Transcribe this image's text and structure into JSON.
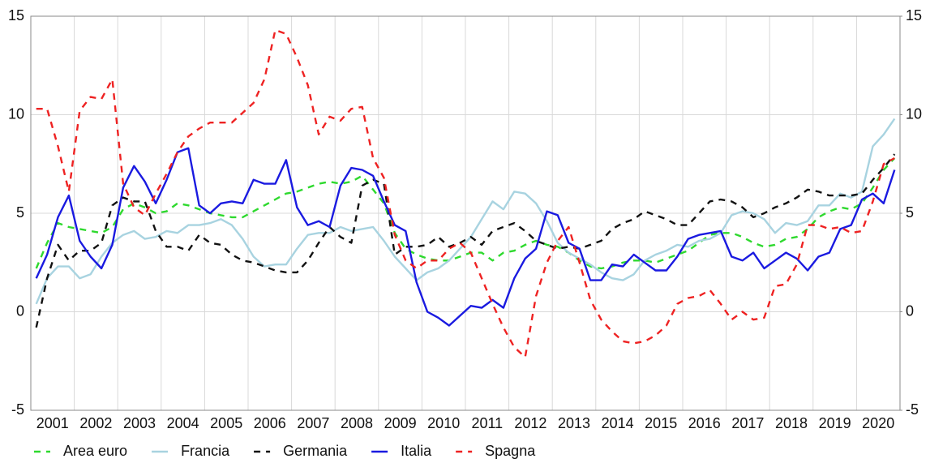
{
  "chart_data": {
    "type": "line",
    "x": [
      2001.125,
      2001.375,
      2001.625,
      2001.875,
      2002.125,
      2002.375,
      2002.625,
      2002.875,
      2003.125,
      2003.375,
      2003.625,
      2003.875,
      2004.125,
      2004.375,
      2004.625,
      2004.875,
      2005.125,
      2005.375,
      2005.625,
      2005.875,
      2006.125,
      2006.375,
      2006.625,
      2006.875,
      2007.125,
      2007.375,
      2007.625,
      2007.875,
      2008.125,
      2008.375,
      2008.625,
      2008.875,
      2009.125,
      2009.375,
      2009.625,
      2009.875,
      2010.125,
      2010.375,
      2010.625,
      2010.875,
      2011.125,
      2011.375,
      2011.625,
      2011.875,
      2012.125,
      2012.375,
      2012.625,
      2012.875,
      2013.125,
      2013.375,
      2013.625,
      2013.875,
      2014.125,
      2014.375,
      2014.625,
      2014.875,
      2015.125,
      2015.375,
      2015.625,
      2015.875,
      2016.125,
      2016.375,
      2016.625,
      2016.875,
      2017.125,
      2017.375,
      2017.625,
      2017.875,
      2018.125,
      2018.375,
      2018.625,
      2018.875,
      2019.125,
      2019.375,
      2019.625,
      2019.875,
      2020.125,
      2020.375,
      2020.625,
      2020.875
    ],
    "xlim": [
      2001,
      2021
    ],
    "xticks": [
      {
        "value": 2001.5,
        "label": "2001"
      },
      {
        "value": 2002.5,
        "label": "2002"
      },
      {
        "value": 2003.5,
        "label": "2003"
      },
      {
        "value": 2004.5,
        "label": "2004"
      },
      {
        "value": 2005.5,
        "label": "2005"
      },
      {
        "value": 2006.5,
        "label": "2006"
      },
      {
        "value": 2007.5,
        "label": "2007"
      },
      {
        "value": 2008.5,
        "label": "2008"
      },
      {
        "value": 2009.5,
        "label": "2009"
      },
      {
        "value": 2010.5,
        "label": "2010"
      },
      {
        "value": 2011.5,
        "label": "2011"
      },
      {
        "value": 2012.5,
        "label": "2012"
      },
      {
        "value": 2013.5,
        "label": "2013"
      },
      {
        "value": 2014.5,
        "label": "2014"
      },
      {
        "value": 2015.5,
        "label": "2015"
      },
      {
        "value": 2016.5,
        "label": "2016"
      },
      {
        "value": 2017.5,
        "label": "2017"
      },
      {
        "value": 2018.5,
        "label": "2018"
      },
      {
        "value": 2019.5,
        "label": "2019"
      },
      {
        "value": 2020.5,
        "label": "2020"
      }
    ],
    "xgrid": [
      2002,
      2003,
      2004,
      2005,
      2006,
      2007,
      2008,
      2009,
      2010,
      2011,
      2012,
      2013,
      2014,
      2015,
      2016,
      2017,
      2018,
      2019,
      2020
    ],
    "ylim": [
      -5,
      15
    ],
    "yticks": [
      -5,
      0,
      5,
      10,
      15
    ],
    "y2lim": [
      -5,
      15
    ],
    "y2ticks": [
      -5,
      0,
      5,
      10,
      15
    ],
    "grid": true,
    "series": [
      {
        "name": "Area euro",
        "color": "#2ed92e",
        "dashed": true,
        "values": [
          2.2,
          3.5,
          4.5,
          4.3,
          4.2,
          4.1,
          4.0,
          4.3,
          5.2,
          5.5,
          5.3,
          5.0,
          5.1,
          5.5,
          5.4,
          5.2,
          5.0,
          4.9,
          4.8,
          4.8,
          5.1,
          5.4,
          5.7,
          6.0,
          6.1,
          6.3,
          6.5,
          6.6,
          6.5,
          6.6,
          6.9,
          6.2,
          5.5,
          4.0,
          3.2,
          2.9,
          2.7,
          2.6,
          2.6,
          2.8,
          3.0,
          3.0,
          2.6,
          3.0,
          3.1,
          3.4,
          3.6,
          3.4,
          3.3,
          3.0,
          2.6,
          2.3,
          2.2,
          2.3,
          2.5,
          2.6,
          2.6,
          2.5,
          2.7,
          2.9,
          3.1,
          3.5,
          3.9,
          4.0,
          4.0,
          3.8,
          3.5,
          3.3,
          3.4,
          3.7,
          3.8,
          4.2,
          4.8,
          5.1,
          5.3,
          5.2,
          5.5,
          6.3,
          7.2,
          7.8
        ]
      },
      {
        "name": "Francia",
        "color": "#a8d3e0",
        "dashed": false,
        "values": [
          0.4,
          1.7,
          2.3,
          2.3,
          1.7,
          1.9,
          2.8,
          3.5,
          3.9,
          4.1,
          3.7,
          3.8,
          4.1,
          4.0,
          4.4,
          4.4,
          4.5,
          4.7,
          4.4,
          3.7,
          2.8,
          2.3,
          2.4,
          2.4,
          3.2,
          3.9,
          4.0,
          4.0,
          4.3,
          4.1,
          4.2,
          4.3,
          3.6,
          2.8,
          2.2,
          1.6,
          2.0,
          2.2,
          2.6,
          3.2,
          3.8,
          4.7,
          5.6,
          5.2,
          6.1,
          6.0,
          5.5,
          4.6,
          3.5,
          3.0,
          2.7,
          2.4,
          2.0,
          1.7,
          1.6,
          1.9,
          2.6,
          2.9,
          3.1,
          3.4,
          3.3,
          3.6,
          3.7,
          4.0,
          4.9,
          5.1,
          5.0,
          4.7,
          4.0,
          4.5,
          4.4,
          4.6,
          5.4,
          5.4,
          6.0,
          5.8,
          6.1,
          8.4,
          9.0,
          9.8
        ]
      },
      {
        "name": "Germania",
        "color": "#111111",
        "dashed": true,
        "values": [
          -0.8,
          1.7,
          3.4,
          2.6,
          3.1,
          3.1,
          3.5,
          5.4,
          5.8,
          5.6,
          5.6,
          4.1,
          3.3,
          3.3,
          3.1,
          3.9,
          3.5,
          3.4,
          2.9,
          2.6,
          2.5,
          2.3,
          2.1,
          2.0,
          2.0,
          2.6,
          3.5,
          4.3,
          3.8,
          3.5,
          6.4,
          6.7,
          6.5,
          2.9,
          3.3,
          3.3,
          3.4,
          3.8,
          3.3,
          3.5,
          3.8,
          3.4,
          4.1,
          4.3,
          4.5,
          4.1,
          3.6,
          3.4,
          3.2,
          3.3,
          3.2,
          3.4,
          3.6,
          4.2,
          4.5,
          4.7,
          5.1,
          4.9,
          4.7,
          4.4,
          4.4,
          5.0,
          5.6,
          5.7,
          5.6,
          5.3,
          4.8,
          5.0,
          5.3,
          5.5,
          5.8,
          6.2,
          6.1,
          5.9,
          5.9,
          5.9,
          6.0,
          6.7,
          7.3,
          8.0
        ]
      },
      {
        "name": "Italia",
        "color": "#1a1ae0",
        "dashed": false,
        "values": [
          1.7,
          2.9,
          4.8,
          5.9,
          3.6,
          2.8,
          2.2,
          3.4,
          6.3,
          7.4,
          6.6,
          5.5,
          6.7,
          8.1,
          8.3,
          5.4,
          5.0,
          5.5,
          5.6,
          5.5,
          6.7,
          6.5,
          6.5,
          7.7,
          5.3,
          4.4,
          4.6,
          4.3,
          6.4,
          7.3,
          7.2,
          6.9,
          5.6,
          4.4,
          4.1,
          1.5,
          0.0,
          -0.3,
          -0.7,
          -0.2,
          0.3,
          0.2,
          0.6,
          0.2,
          1.7,
          2.7,
          3.2,
          5.1,
          4.9,
          3.5,
          3.2,
          1.6,
          1.6,
          2.4,
          2.3,
          2.9,
          2.5,
          2.1,
          2.1,
          2.8,
          3.7,
          3.9,
          4.0,
          4.1,
          2.8,
          2.6,
          3.0,
          2.2,
          2.6,
          3.0,
          2.7,
          2.1,
          2.8,
          3.0,
          4.2,
          4.4,
          5.7,
          6.0,
          5.5,
          7.2
        ]
      },
      {
        "name": "Spagna",
        "color": "#ee2222",
        "dashed": true,
        "values": [
          10.3,
          10.3,
          8.4,
          6.1,
          10.2,
          10.9,
          10.8,
          11.8,
          6.5,
          5.3,
          4.9,
          6.0,
          7.0,
          8.1,
          8.9,
          9.3,
          9.6,
          9.6,
          9.6,
          10.1,
          10.6,
          11.8,
          14.3,
          14.1,
          12.9,
          11.5,
          9.0,
          9.9,
          9.7,
          10.3,
          10.4,
          7.8,
          6.8,
          3.9,
          2.6,
          2.2,
          2.6,
          2.6,
          3.2,
          3.5,
          3.0,
          1.7,
          0.4,
          -0.8,
          -1.8,
          -2.3,
          0.8,
          2.5,
          3.6,
          4.3,
          2.5,
          0.6,
          -0.4,
          -1.0,
          -1.5,
          -1.6,
          -1.5,
          -1.2,
          -0.7,
          0.4,
          0.7,
          0.8,
          1.1,
          0.4,
          -0.4,
          0.0,
          -0.4,
          -0.3,
          1.3,
          1.4,
          2.4,
          4.4,
          4.4,
          4.2,
          4.3,
          4.0,
          4.1,
          5.6,
          7.5,
          7.8
        ]
      }
    ]
  }
}
